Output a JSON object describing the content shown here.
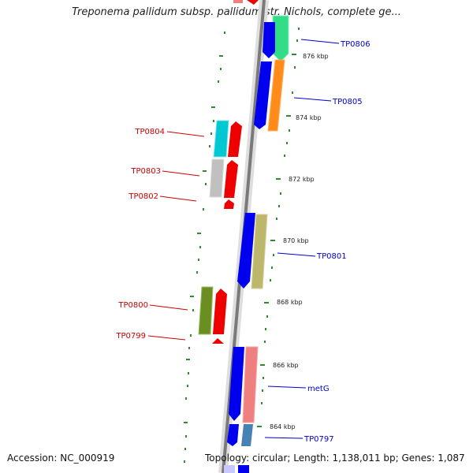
{
  "title": "Treponema pallidum subsp. pallidum str. Nichols, complete ge...",
  "footer": {
    "accession": "Accession: NC_000919",
    "summary": "Topology: circular; Length: 1,138,011 bp; Genes: 1,087"
  },
  "kbp_ticks": [
    {
      "label": "876 kbp"
    },
    {
      "label": "874 kbp"
    },
    {
      "label": "872 kbp"
    },
    {
      "label": "870 kbp"
    },
    {
      "label": "868 kbp"
    },
    {
      "label": "866 kbp"
    },
    {
      "label": "864 kbp"
    }
  ],
  "gene_labels": {
    "forward": [
      "TP0806",
      "TP0805",
      "TP0801",
      "metG",
      "TP0797"
    ],
    "reverse": [
      "TP0804",
      "TP0803",
      "TP0802",
      "TP0800",
      "TP0799"
    ]
  },
  "colors": {
    "forward_label": "#0000cc",
    "reverse_label": "#cc0000",
    "tick_green": "#2e8b2e",
    "backbone": "#7a7a7a"
  }
}
